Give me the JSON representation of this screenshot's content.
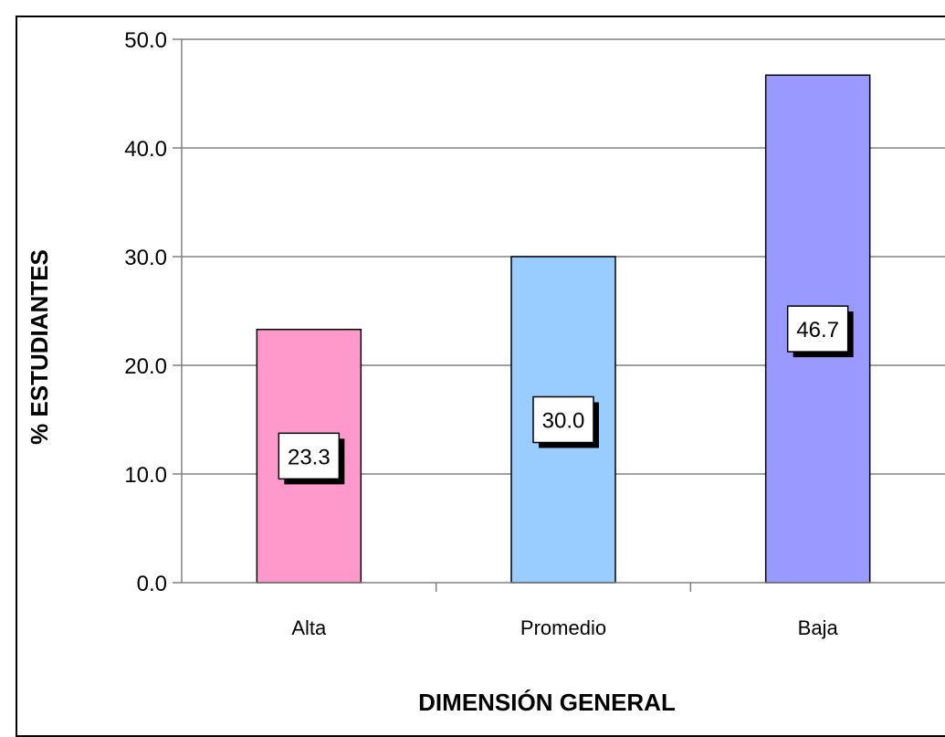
{
  "chart_data": {
    "type": "bar",
    "categories": [
      "Alta",
      "Promedio",
      "Baja"
    ],
    "values": [
      23.3,
      30.0,
      46.7
    ],
    "data_labels": [
      "23.3",
      "30.0",
      "46.7"
    ],
    "bar_colors": [
      "#ff99cc",
      "#99ccff",
      "#9999ff"
    ],
    "xlabel": "DIMENSIÓN GENERAL",
    "ylabel": "% ESTUDIANTES",
    "ylim": [
      0,
      50
    ],
    "yticks": [
      "0.0",
      "10.0",
      "20.0",
      "30.0",
      "40.0",
      "50.0"
    ],
    "grid": true,
    "legend": "none"
  }
}
